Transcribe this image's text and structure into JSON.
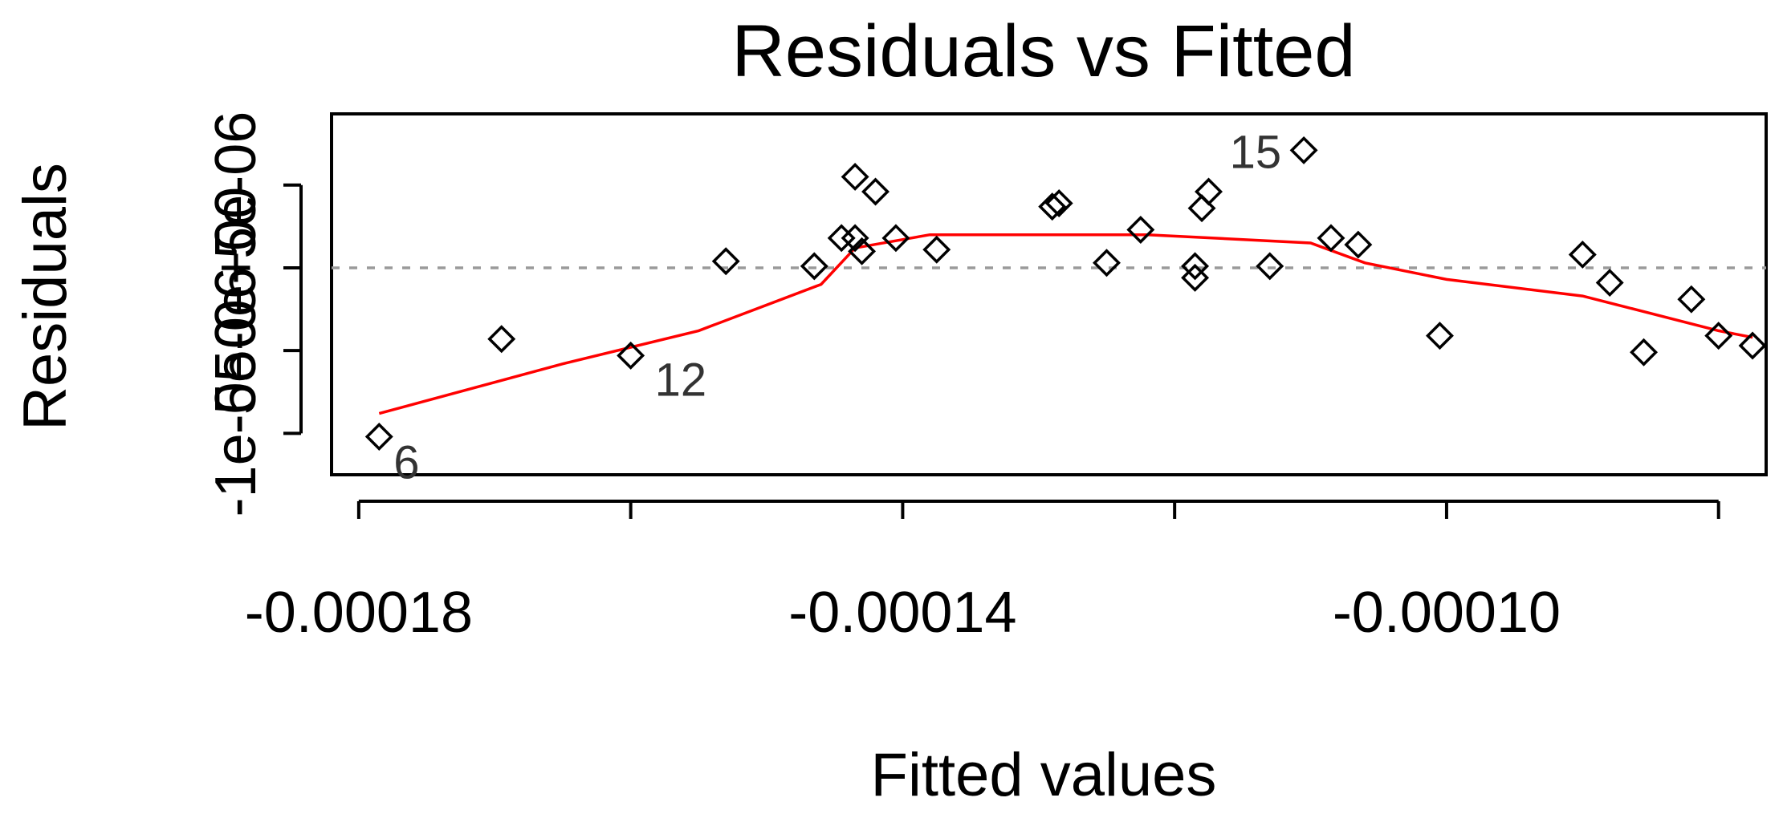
{
  "chart_data": {
    "type": "scatter",
    "title": "Residuals vs Fitted",
    "xlabel": "Fitted values",
    "ylabel": "Residuals",
    "xlim": [
      -0.000182,
      -7.65e-05
    ],
    "ylim": [
      -1.25e-05,
      9.3e-06
    ],
    "x_ticks": [
      {
        "value": -0.00018,
        "label": "-0.00018"
      },
      {
        "value": -0.00016,
        "label": ""
      },
      {
        "value": -0.00014,
        "label": "-0.00014"
      },
      {
        "value": -0.00012,
        "label": ""
      },
      {
        "value": -0.0001,
        "label": "-0.00010"
      },
      {
        "value": -8e-05,
        "label": ""
      }
    ],
    "y_ticks": [
      {
        "value": -1e-05,
        "label": "-1e-05"
      },
      {
        "value": -5e-06,
        "label": "-5e-06"
      },
      {
        "value": 0,
        "label": "0e+00"
      },
      {
        "value": 5e-06,
        "label": "5e-06"
      }
    ],
    "zero_line": 0,
    "grid": false,
    "legend": "none",
    "points": [
      {
        "x": -0.0001785,
        "y": -1.02e-05
      },
      {
        "x": -0.0001695,
        "y": -4.3e-06
      },
      {
        "x": -0.00016,
        "y": -5.3e-06
      },
      {
        "x": -0.000153,
        "y": 4e-07
      },
      {
        "x": -0.0001465,
        "y": 1e-07
      },
      {
        "x": -0.0001435,
        "y": 1.8e-06
      },
      {
        "x": -0.0001445,
        "y": 1.8e-06
      },
      {
        "x": -0.000143,
        "y": 1e-06
      },
      {
        "x": -0.0001435,
        "y": 5.5e-06
      },
      {
        "x": -0.000142,
        "y": 4.6e-06
      },
      {
        "x": -0.0001405,
        "y": 1.8e-06
      },
      {
        "x": -0.0001375,
        "y": 1.1e-06
      },
      {
        "x": -0.000129,
        "y": 3.7e-06
      },
      {
        "x": -0.0001285,
        "y": 3.9e-06
      },
      {
        "x": -0.000125,
        "y": 3e-07
      },
      {
        "x": -0.0001225,
        "y": 2.3e-06
      },
      {
        "x": -0.0001185,
        "y": -6e-07
      },
      {
        "x": -0.0001185,
        "y": 1e-07
      },
      {
        "x": -0.000118,
        "y": 3.6e-06
      },
      {
        "x": -0.0001175,
        "y": 4.6e-06
      },
      {
        "x": -0.000113,
        "y": 1e-07
      },
      {
        "x": -0.0001105,
        "y": 7.1e-06
      },
      {
        "x": -0.0001085,
        "y": 1.8e-06
      },
      {
        "x": -0.0001065,
        "y": 1.4e-06
      },
      {
        "x": -0.0001005,
        "y": -4.1e-06
      },
      {
        "x": -9e-05,
        "y": 8e-07
      },
      {
        "x": -8.8e-05,
        "y": -9e-07
      },
      {
        "x": -8.55e-05,
        "y": -5.1e-06
      },
      {
        "x": -8.2e-05,
        "y": -1.9e-06
      },
      {
        "x": -8e-05,
        "y": -4.1e-06
      },
      {
        "x": -7.75e-05,
        "y": -4.7e-06
      }
    ],
    "point_labels": [
      {
        "x": -0.0001785,
        "y": -1.02e-05,
        "label": "6",
        "side": "below-right"
      },
      {
        "x": -0.00016,
        "y": -5.3e-06,
        "label": "12",
        "side": "right"
      },
      {
        "x": -0.0001105,
        "y": 7.1e-06,
        "label": "15",
        "side": "left"
      }
    ],
    "smooth_line": {
      "name": "",
      "color": "#ff0000",
      "x": [
        -0.0001785,
        -0.000165,
        -0.000155,
        -0.000146,
        -0.0001435,
        -0.000138,
        -0.000125,
        -0.000122,
        -0.00011,
        -0.000106,
        -0.0001,
        -9e-05,
        -8e-05,
        -7.75e-05
      ],
      "y": [
        -8.8e-06,
        -5.8e-06,
        -3.8e-06,
        -1e-06,
        1.2e-06,
        2e-06,
        2e-06,
        2e-06,
        1.5e-06,
        3e-07,
        -7e-07,
        -1.7e-06,
        -3.8e-06,
        -4.2e-06
      ]
    },
    "colors": {
      "points": "#000000",
      "smooth": "#ff0000",
      "zero_line": "#9a9a9a"
    }
  }
}
